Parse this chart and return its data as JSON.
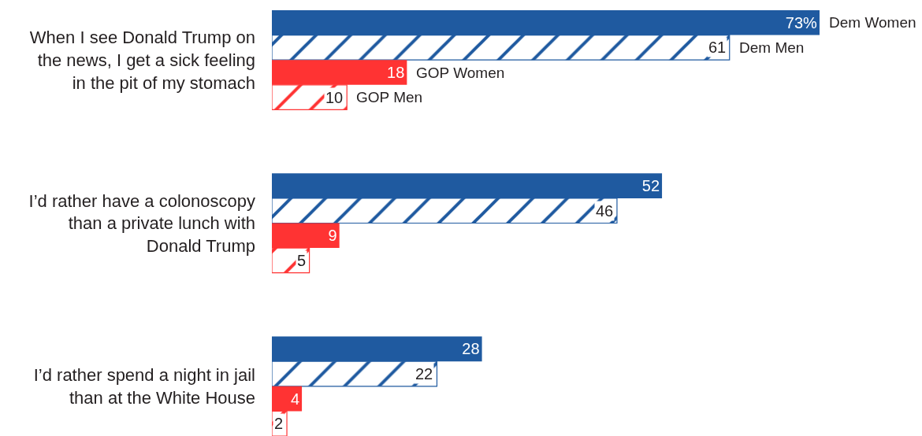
{
  "chart_data": {
    "type": "bar",
    "orientation": "horizontal",
    "categories": [
      "When I see Donald Trump on\nthe news, I get a sick feeling\nin the pit of my stomach",
      "I’d rather have a colonoscopy\nthan a private lunch with\nDonald Trump",
      "I’d rather spend a night in jail\nthan at the White House"
    ],
    "series": [
      {
        "name": "Dem Women",
        "color": "#1f5aa0",
        "values": [
          73,
          52,
          28
        ],
        "value_labels": [
          "73%",
          "52",
          "28"
        ]
      },
      {
        "name": "Dem Men",
        "color": "#1f5aa0",
        "values": [
          61,
          46,
          22
        ],
        "value_labels": [
          "61",
          "46",
          "22"
        ]
      },
      {
        "name": "GOP Women",
        "color": "#ff3333",
        "values": [
          18,
          9,
          4
        ],
        "value_labels": [
          "18",
          "9",
          "4"
        ]
      },
      {
        "name": "GOP Men",
        "color": "#ff3333",
        "values": [
          10,
          5,
          2
        ],
        "value_labels": [
          "10",
          "5",
          "2"
        ]
      }
    ],
    "legend": false
  }
}
